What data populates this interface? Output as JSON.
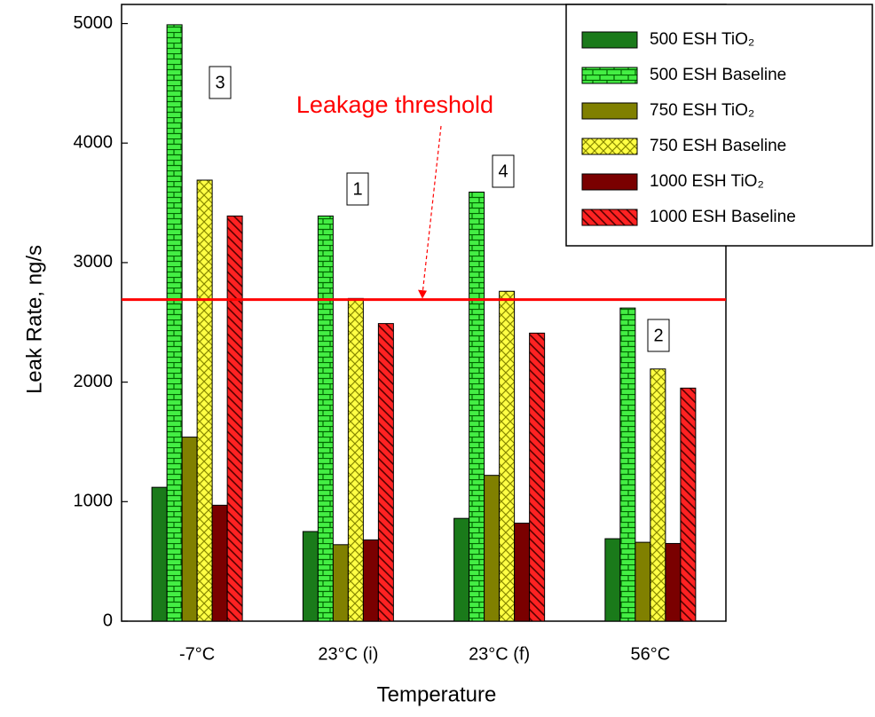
{
  "chart_data": {
    "type": "bar",
    "x_label": "Temperature",
    "y_label": "Leak Rate, ng/s",
    "categories": [
      "-7°C",
      "23°C (i)",
      "23°C (f)",
      "56°C"
    ],
    "series": [
      {
        "name": "500 ESH TiO₂",
        "color": "#1a7a1a",
        "hatch": "none",
        "values": [
          1120,
          750,
          860,
          690
        ]
      },
      {
        "name": "500 ESH Baseline",
        "color": "#44ee44",
        "hatch": "brick",
        "values": [
          4990,
          3390,
          3590,
          2620
        ]
      },
      {
        "name": "750 ESH TiO₂",
        "color": "#808000",
        "hatch": "none",
        "values": [
          1540,
          640,
          1220,
          660
        ]
      },
      {
        "name": "750 ESH Baseline",
        "color": "#ffff44",
        "hatch": "cross",
        "values": [
          3690,
          2700,
          2760,
          2110
        ]
      },
      {
        "name": "1000 ESH TiO₂",
        "color": "#7a0000",
        "hatch": "none",
        "values": [
          970,
          680,
          820,
          650
        ]
      },
      {
        "name": "1000 ESH Baseline",
        "color": "#ff2222",
        "hatch": "diagonal",
        "values": [
          3390,
          2490,
          2410,
          1950
        ]
      }
    ],
    "ylim": [
      0,
      5160
    ],
    "yticks": [
      0,
      1000,
      2000,
      3000,
      4000,
      5000
    ],
    "threshold": {
      "value": 2690,
      "label": "Leakage threshold",
      "color": "#ff0000"
    },
    "annotations": [
      "3",
      "1",
      "4",
      "2"
    ],
    "legend": "upper right"
  }
}
